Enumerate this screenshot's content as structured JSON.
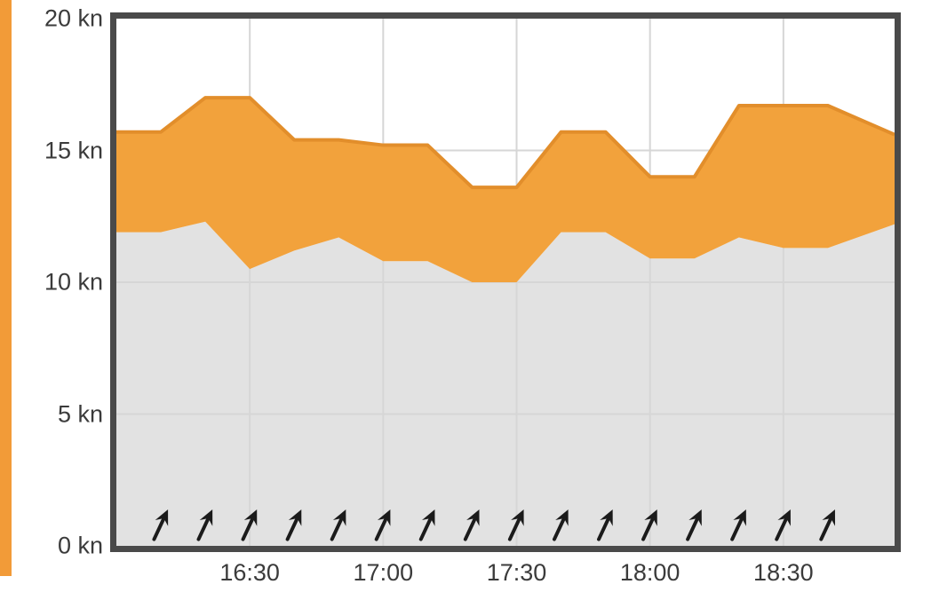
{
  "accent_color": "#F29B38",
  "chart_data": {
    "type": "area",
    "title": "",
    "unit": "kn",
    "ylim": [
      0,
      20
    ],
    "grid": true,
    "legend": "none",
    "y_ticks": [
      {
        "value": 20,
        "label": "20 kn"
      },
      {
        "value": 15,
        "label": "15 kn"
      },
      {
        "value": 10,
        "label": "10 kn"
      },
      {
        "value": 5,
        "label": "5 kn"
      },
      {
        "value": 0,
        "label": "0 kn"
      }
    ],
    "x_ticks": [
      {
        "minutes": 30,
        "label": "16:30"
      },
      {
        "minutes": 60,
        "label": "17:00"
      },
      {
        "minutes": 90,
        "label": "17:30"
      },
      {
        "minutes": 120,
        "label": "18:00"
      },
      {
        "minutes": 150,
        "label": "18:30"
      }
    ],
    "x_domain_minutes": [
      0,
      175
    ],
    "series": [
      {
        "name": "wind_speed_kn",
        "fill": "#E2E2E2",
        "points": [
          [
            0,
            11.9
          ],
          [
            10,
            11.9
          ],
          [
            20,
            12.3
          ],
          [
            30,
            10.5
          ],
          [
            40,
            11.2
          ],
          [
            50,
            11.7
          ],
          [
            60,
            10.8
          ],
          [
            70,
            10.8
          ],
          [
            80,
            10.0
          ],
          [
            90,
            10.0
          ],
          [
            100,
            11.9
          ],
          [
            110,
            11.9
          ],
          [
            120,
            10.9
          ],
          [
            130,
            10.9
          ],
          [
            140,
            11.7
          ],
          [
            150,
            11.3
          ],
          [
            160,
            11.3
          ],
          [
            175,
            12.2
          ]
        ]
      },
      {
        "name": "gust_kn",
        "fill": "#F2A23C",
        "stroke": "#E28E2B",
        "points": [
          [
            0,
            15.7
          ],
          [
            10,
            15.7
          ],
          [
            20,
            17.0
          ],
          [
            30,
            17.0
          ],
          [
            40,
            15.4
          ],
          [
            50,
            15.4
          ],
          [
            60,
            15.2
          ],
          [
            70,
            15.2
          ],
          [
            80,
            13.6
          ],
          [
            90,
            13.6
          ],
          [
            100,
            15.7
          ],
          [
            110,
            15.7
          ],
          [
            120,
            14.0
          ],
          [
            130,
            14.0
          ],
          [
            140,
            16.7
          ],
          [
            150,
            16.7
          ],
          [
            160,
            16.7
          ],
          [
            175,
            15.6
          ]
        ]
      }
    ],
    "wind_arrows": {
      "color": "#1B1B1B",
      "angle_deg": 25,
      "y_kn": 0.8,
      "times_minutes": [
        10,
        20,
        30,
        40,
        50,
        60,
        70,
        80,
        90,
        100,
        110,
        120,
        130,
        140,
        150,
        160
      ]
    },
    "colors": {
      "grid": "#D6D6D6",
      "border": "#4A4A4A",
      "tick_text": "#3B3B3B"
    }
  }
}
